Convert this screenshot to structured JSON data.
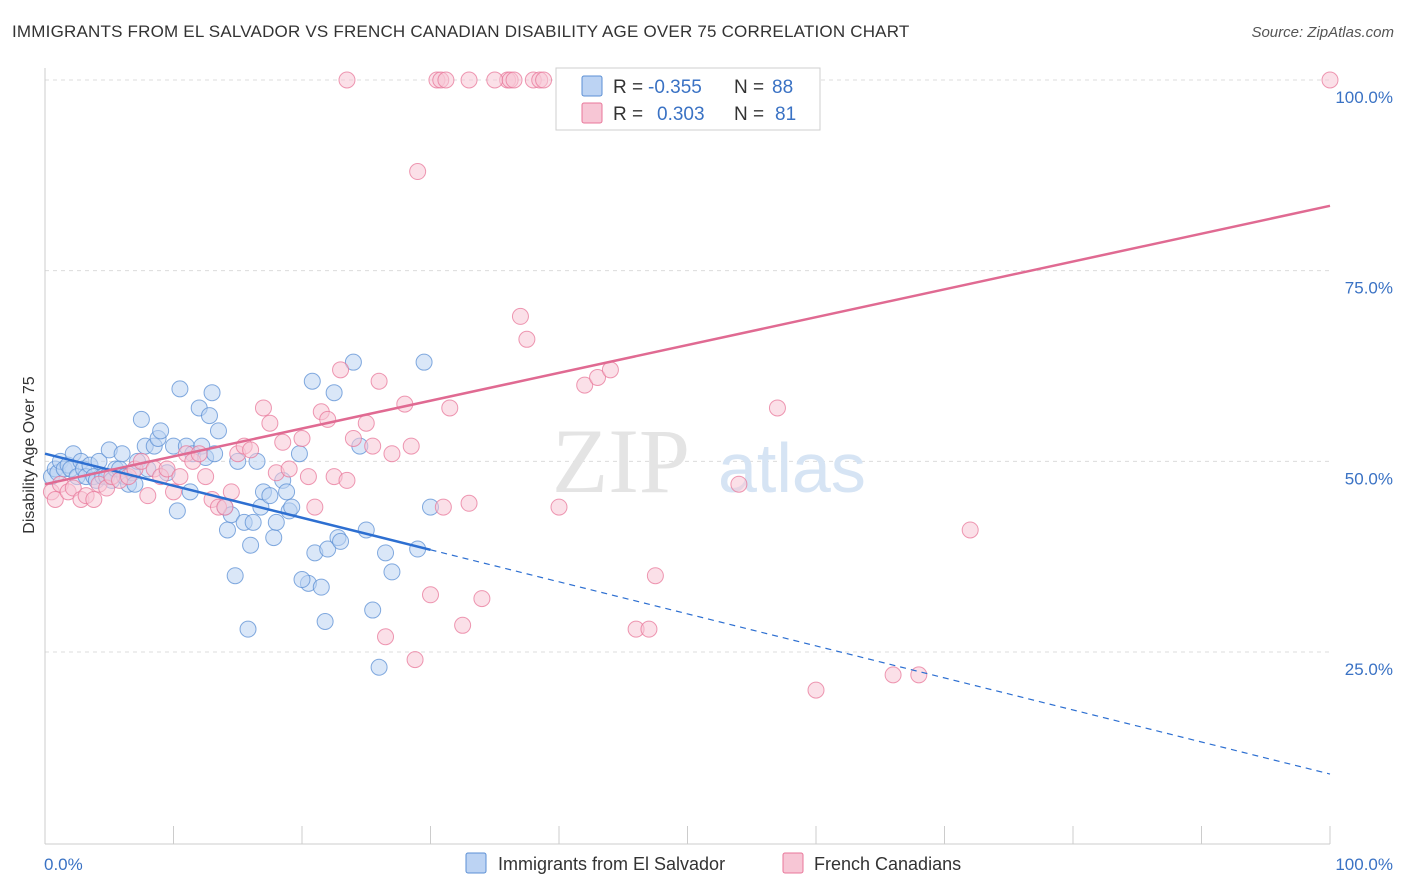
{
  "header": {
    "title": "IMMIGRANTS FROM EL SALVADOR VS FRENCH CANADIAN DISABILITY AGE OVER 75 CORRELATION CHART",
    "source": "Source: ZipAtlas.com"
  },
  "watermark": {
    "part1": "ZIP",
    "part2": "atlas"
  },
  "stats": {
    "r_label": "R =",
    "n_label": "N =",
    "rows": [
      {
        "r": "-0.355",
        "n": "88",
        "color": "#5b8fd4",
        "fill": "#bcd3f3"
      },
      {
        "r": "0.303",
        "n": "81",
        "color": "#e8779a",
        "fill": "#f7c6d5"
      }
    ]
  },
  "chart_data": {
    "type": "scatter",
    "title": "IMMIGRANTS FROM EL SALVADOR VS FRENCH CANADIAN DISABILITY AGE OVER 75 CORRELATION CHART",
    "xlabel": "",
    "ylabel": "Disability Age Over 75",
    "xlim": [
      0,
      100
    ],
    "ylim": [
      7,
      100
    ],
    "x_tick_labels": [
      "0.0%",
      "100.0%"
    ],
    "y_tick_labels": [
      "25.0%",
      "50.0%",
      "75.0%",
      "100.0%"
    ],
    "y_ticks": [
      25,
      50,
      75,
      100
    ],
    "grid": true,
    "legend_position": "bottom",
    "series": [
      {
        "name": "Immigrants from El Salvador",
        "color": "#5b8fd4",
        "fill": "#bcd3f3",
        "trend": {
          "x0": 0,
          "y0": 51,
          "x_solid_end": 30,
          "x1": 100,
          "y1": 9
        },
        "points": [
          [
            0.5,
            48
          ],
          [
            0.8,
            49
          ],
          [
            1,
            48.5
          ],
          [
            1.2,
            50
          ],
          [
            1.5,
            49
          ],
          [
            1.8,
            49.5
          ],
          [
            2,
            49
          ],
          [
            2.2,
            51
          ],
          [
            2.5,
            48
          ],
          [
            2.8,
            50
          ],
          [
            3,
            49
          ],
          [
            3.2,
            48
          ],
          [
            3.5,
            49.5
          ],
          [
            3.8,
            48
          ],
          [
            4,
            47.5
          ],
          [
            4.2,
            50
          ],
          [
            4.5,
            48
          ],
          [
            4.8,
            48
          ],
          [
            5,
            51.5
          ],
          [
            5.2,
            47.5
          ],
          [
            5.5,
            49
          ],
          [
            5.8,
            49
          ],
          [
            6,
            51
          ],
          [
            6.2,
            48
          ],
          [
            6.5,
            47
          ],
          [
            6.8,
            48.5
          ],
          [
            7,
            47
          ],
          [
            7.2,
            50
          ],
          [
            7.5,
            55.5
          ],
          [
            7.8,
            52
          ],
          [
            8,
            49
          ],
          [
            8.5,
            52
          ],
          [
            8.8,
            53
          ],
          [
            9,
            54
          ],
          [
            9.5,
            48.5
          ],
          [
            10,
            52
          ],
          [
            10.3,
            43.5
          ],
          [
            10.5,
            59.5
          ],
          [
            11,
            52
          ],
          [
            11.3,
            46
          ],
          [
            11.5,
            51
          ],
          [
            12,
            57
          ],
          [
            12.2,
            52
          ],
          [
            12.5,
            50.5
          ],
          [
            12.8,
            56
          ],
          [
            13,
            59
          ],
          [
            13.2,
            51
          ],
          [
            13.5,
            54
          ],
          [
            14,
            44
          ],
          [
            14.2,
            41
          ],
          [
            14.5,
            43
          ],
          [
            14.8,
            35
          ],
          [
            15,
            50
          ],
          [
            15.5,
            42
          ],
          [
            15.8,
            28
          ],
          [
            16,
            39
          ],
          [
            16.2,
            42
          ],
          [
            16.5,
            50
          ],
          [
            16.8,
            44
          ],
          [
            17,
            46
          ],
          [
            17.5,
            45.5
          ],
          [
            17.8,
            40
          ],
          [
            18,
            42
          ],
          [
            18.5,
            47.5
          ],
          [
            18.8,
            46
          ],
          [
            19,
            43.5
          ],
          [
            19.2,
            44
          ],
          [
            19.8,
            51
          ],
          [
            20.5,
            34
          ],
          [
            20.8,
            60.5
          ],
          [
            21,
            38
          ],
          [
            21.5,
            33.5
          ],
          [
            21.8,
            29
          ],
          [
            22,
            38.5
          ],
          [
            22.5,
            59
          ],
          [
            22.8,
            40
          ],
          [
            23,
            39.5
          ],
          [
            24,
            63
          ],
          [
            24.5,
            52
          ],
          [
            25,
            41
          ],
          [
            25.5,
            30.5
          ],
          [
            26,
            23
          ],
          [
            26.5,
            38
          ],
          [
            27,
            35.5
          ],
          [
            29,
            38.5
          ],
          [
            29.5,
            63
          ],
          [
            30,
            44
          ],
          [
            20,
            34.5
          ]
        ]
      },
      {
        "name": "French Canadians",
        "color": "#e8779a",
        "fill": "#f7c6d5",
        "trend": {
          "x0": 0,
          "y0": 47,
          "x1": 100,
          "y1": 83.5
        },
        "points": [
          [
            0.5,
            46
          ],
          [
            0.8,
            45
          ],
          [
            1.2,
            47
          ],
          [
            1.8,
            46
          ],
          [
            2.2,
            46.5
          ],
          [
            2.8,
            45
          ],
          [
            3.2,
            45.5
          ],
          [
            3.8,
            45
          ],
          [
            4.2,
            47
          ],
          [
            4.8,
            46.5
          ],
          [
            5.2,
            48
          ],
          [
            5.8,
            47.5
          ],
          [
            6.5,
            48
          ],
          [
            7,
            49
          ],
          [
            7.5,
            50
          ],
          [
            8,
            45.5
          ],
          [
            8.5,
            49
          ],
          [
            9,
            48
          ],
          [
            9.5,
            49
          ],
          [
            10,
            46
          ],
          [
            10.5,
            48
          ],
          [
            11,
            51
          ],
          [
            11.5,
            50
          ],
          [
            12,
            51
          ],
          [
            12.5,
            48
          ],
          [
            13,
            45
          ],
          [
            13.5,
            44
          ],
          [
            14,
            44
          ],
          [
            14.5,
            46
          ],
          [
            15,
            51
          ],
          [
            15.5,
            52
          ],
          [
            16,
            51.5
          ],
          [
            17,
            57
          ],
          [
            17.5,
            55
          ],
          [
            18,
            48.5
          ],
          [
            18.5,
            52.5
          ],
          [
            19,
            49
          ],
          [
            20,
            53
          ],
          [
            20.5,
            48
          ],
          [
            21,
            44
          ],
          [
            21.5,
            56.5
          ],
          [
            22,
            55.5
          ],
          [
            22.5,
            48
          ],
          [
            23,
            62
          ],
          [
            23.5,
            47.5
          ],
          [
            24,
            53
          ],
          [
            25,
            55
          ],
          [
            25.5,
            52
          ],
          [
            26,
            60.5
          ],
          [
            26.5,
            27
          ],
          [
            27,
            51
          ],
          [
            28,
            57.5
          ],
          [
            28.5,
            52
          ],
          [
            28.8,
            24
          ],
          [
            29,
            88
          ],
          [
            30,
            32.5
          ],
          [
            31,
            44
          ],
          [
            31.5,
            57
          ],
          [
            32.5,
            28.5
          ],
          [
            33,
            44.5
          ],
          [
            34,
            32
          ],
          [
            37,
            69
          ],
          [
            37.5,
            66
          ],
          [
            40,
            44
          ],
          [
            41,
            95
          ],
          [
            42,
            60
          ],
          [
            43,
            61
          ],
          [
            44,
            62
          ],
          [
            46,
            28
          ],
          [
            47,
            28
          ],
          [
            47.5,
            35
          ],
          [
            54,
            47
          ],
          [
            57,
            57
          ],
          [
            60,
            20
          ],
          [
            66,
            22
          ],
          [
            68,
            22
          ],
          [
            72,
            41
          ],
          [
            100,
            100
          ],
          [
            36,
            100
          ],
          [
            38,
            100
          ],
          [
            41,
            100
          ]
        ]
      }
    ],
    "top_row_points": [
      [
        23.5,
        100
      ],
      [
        30.5,
        100
      ],
      [
        30.8,
        100
      ],
      [
        31.2,
        100
      ],
      [
        33,
        100
      ],
      [
        35,
        100
      ],
      [
        36.2,
        100
      ],
      [
        36.5,
        100
      ],
      [
        38.5,
        100
      ],
      [
        38.8,
        100
      ],
      [
        55,
        100
      ],
      [
        55.3,
        100
      ]
    ]
  },
  "legend": {
    "items": [
      {
        "label": "Immigrants from El Salvador",
        "color": "#5b8fd4",
        "fill": "#bcd3f3"
      },
      {
        "label": "French Canadians",
        "color": "#e8779a",
        "fill": "#f7c6d5"
      }
    ]
  }
}
